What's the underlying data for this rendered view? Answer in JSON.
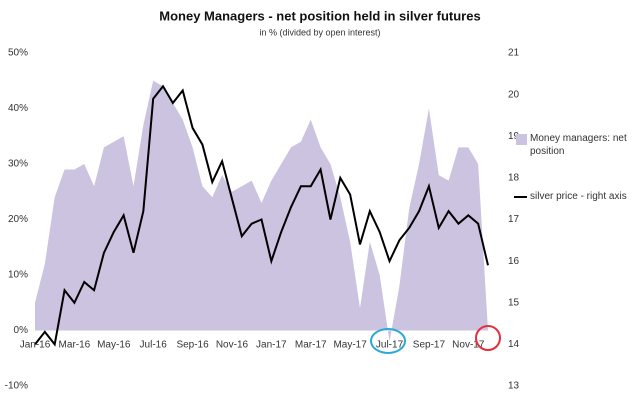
{
  "chart_data": {
    "type": "area-line",
    "title": "Money Managers - net position held in silver futures",
    "subtitle": "in % (divided by open interest)",
    "categories": [
      "Jan-16",
      null,
      null,
      null,
      "Mar-16",
      null,
      null,
      null,
      "May-16",
      null,
      null,
      null,
      "Jul-16",
      null,
      null,
      null,
      "Sep-16",
      null,
      null,
      null,
      "Nov-16",
      null,
      null,
      null,
      "Jan-17",
      null,
      null,
      null,
      "Mar-17",
      null,
      null,
      null,
      "May-17",
      null,
      null,
      null,
      "Jul-17",
      null,
      null,
      null,
      "Sep-17",
      null,
      null,
      null,
      "Nov-17",
      null,
      null
    ],
    "series": [
      {
        "name": "Money managers: net position",
        "color": "#cbc3df",
        "chart": "area",
        "values": [
          5,
          12,
          24,
          29,
          29,
          30,
          26,
          33,
          34,
          35,
          26,
          37,
          45,
          44,
          41,
          38,
          33,
          26,
          24,
          28,
          25,
          26,
          27,
          23,
          27,
          30,
          33,
          34,
          38,
          33,
          30,
          24,
          16,
          4,
          16,
          10,
          -2,
          8,
          22,
          30,
          40,
          28,
          27,
          33,
          33,
          30,
          0
        ]
      },
      {
        "name": "silver price - right axis",
        "color": "#000000",
        "chart": "line",
        "axis": "y2",
        "values": [
          14.0,
          14.3,
          14.0,
          15.3,
          15.0,
          15.5,
          15.3,
          16.2,
          16.7,
          17.1,
          16.2,
          17.2,
          19.9,
          20.2,
          19.8,
          20.1,
          19.2,
          18.8,
          17.9,
          18.4,
          17.5,
          16.6,
          16.9,
          17.0,
          16.0,
          16.7,
          17.3,
          17.8,
          17.8,
          18.2,
          17.0,
          18.0,
          17.6,
          16.4,
          17.2,
          16.7,
          16.0,
          16.5,
          16.8,
          17.2,
          17.8,
          16.8,
          17.2,
          16.9,
          17.1,
          16.9,
          15.9
        ]
      }
    ],
    "ylim": [
      -10,
      50
    ],
    "yticks": [
      {
        "value": -10,
        "label": "-10%"
      },
      {
        "value": 0,
        "label": "0%"
      },
      {
        "value": 10,
        "label": "10%"
      },
      {
        "value": 20,
        "label": "20%"
      },
      {
        "value": 30,
        "label": "30%"
      },
      {
        "value": 40,
        "label": "40%"
      },
      {
        "value": 50,
        "label": "50%"
      }
    ],
    "y2lim": [
      13,
      21
    ],
    "y2ticks": [
      13,
      14,
      15,
      16,
      17,
      18,
      19,
      20,
      21
    ],
    "grid": false
  }
}
